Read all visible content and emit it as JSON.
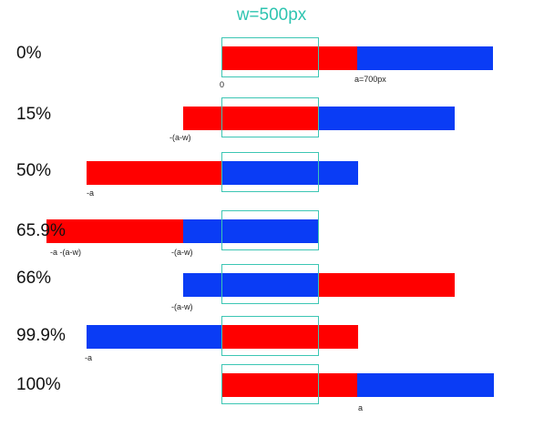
{
  "title": "w=500px",
  "colors": {
    "red": "#ff0000",
    "blue": "#0a3cf5",
    "frame": "#3cc6b4"
  },
  "rows": [
    {
      "label": "0%",
      "notes": [
        "0",
        "a=700px"
      ]
    },
    {
      "label": "15%",
      "notes": [
        "-(a-w)"
      ]
    },
    {
      "label": "50%",
      "notes": [
        "-a"
      ]
    },
    {
      "label": "65.9%",
      "notes": [
        "-a -(a-w)",
        "-(a-w)"
      ]
    },
    {
      "label": "66%",
      "notes": [
        "-(a-w)"
      ]
    },
    {
      "label": "99.9%",
      "notes": [
        "-a"
      ]
    },
    {
      "label": "100%",
      "notes": [
        "a"
      ]
    }
  ]
}
